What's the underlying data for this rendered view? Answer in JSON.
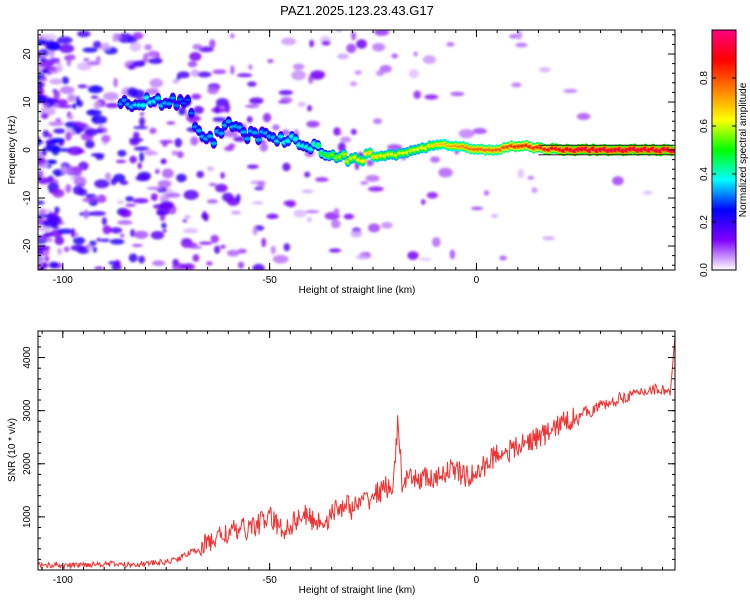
{
  "figure": {
    "title": "PAZ1.2025.123.23.43.G17"
  },
  "chart_data": [
    {
      "type": "heatmap",
      "xlabel": "Height of straight line (km)",
      "ylabel": "Frequency (Hz)",
      "xlim": [
        -106,
        48
      ],
      "ylim": [
        -25,
        25
      ],
      "xticks": [
        -100,
        -50,
        0
      ],
      "yticks": [
        -20,
        -10,
        0,
        10,
        20
      ],
      "colorbar": {
        "label": "Normalized spectral amplitude",
        "range": [
          0,
          1
        ],
        "ticks": [
          0.0,
          0.2,
          0.4,
          0.6,
          0.8
        ],
        "colors": [
          "#ffffff",
          "#8000ff",
          "#0000ff",
          "#00ffff",
          "#00ff00",
          "#ffff00",
          "#ff8000",
          "#ff0000",
          "#ff0080"
        ]
      },
      "ridge": {
        "x": [
          -106,
          -100,
          -90,
          -84,
          -80,
          -75,
          -70,
          -67,
          -64,
          -60,
          -55,
          -50,
          -45,
          -40,
          -35,
          -30,
          -25,
          -20,
          -15,
          -10,
          -5,
          0,
          5,
          10,
          15,
          20,
          25,
          30,
          35,
          40,
          45,
          48
        ],
        "y": [
          1,
          2,
          8,
          10,
          10,
          10,
          10,
          3,
          2,
          5,
          3,
          3,
          2,
          1,
          -1,
          -1.5,
          -1.5,
          -1,
          0,
          1,
          1,
          0,
          0,
          1,
          0.5,
          0,
          0,
          0,
          0,
          0,
          0,
          0
        ],
        "amplitude": [
          0.15,
          0.2,
          0.25,
          0.3,
          0.35,
          0.3,
          0.25,
          0.3,
          0.3,
          0.3,
          0.3,
          0.3,
          0.35,
          0.35,
          0.5,
          0.55,
          0.6,
          0.55,
          0.55,
          0.6,
          0.65,
          0.7,
          0.7,
          0.75,
          0.75,
          0.8,
          0.85,
          0.85,
          0.85,
          0.85,
          0.85,
          0.85
        ]
      }
    },
    {
      "type": "line",
      "xlabel": "Height of straight line (km)",
      "ylabel": "SNR (10 * v/v)",
      "xlim": [
        -106,
        48
      ],
      "ylim": [
        0,
        4500
      ],
      "xticks": [
        -100,
        -50,
        0
      ],
      "yticks": [
        1000,
        2000,
        3000,
        4000
      ],
      "series": [
        {
          "color": "#ee3333",
          "x": [
            -106,
            -100,
            -95,
            -90,
            -85,
            -80,
            -75,
            -72,
            -70,
            -67,
            -65,
            -62,
            -60,
            -57,
            -55,
            -52,
            -50,
            -47,
            -45,
            -42,
            -40,
            -37,
            -35,
            -32,
            -30,
            -27,
            -25,
            -22,
            -20,
            -19,
            -18,
            -15,
            -12,
            -10,
            -8,
            -5,
            -3,
            0,
            3,
            5,
            8,
            10,
            13,
            15,
            18,
            20,
            22,
            25,
            28,
            30,
            33,
            35,
            38,
            40,
            42,
            45,
            47,
            48
          ],
          "y": [
            100,
            80,
            100,
            120,
            100,
            120,
            150,
            220,
            300,
            400,
            500,
            650,
            700,
            750,
            800,
            900,
            1000,
            750,
            850,
            1050,
            950,
            900,
            1050,
            1250,
            1150,
            1300,
            1400,
            1550,
            1600,
            2850,
            1650,
            1700,
            1750,
            1650,
            1850,
            1900,
            1750,
            1800,
            2050,
            2200,
            2250,
            2300,
            2450,
            2500,
            2600,
            2750,
            2800,
            2950,
            3000,
            3100,
            3150,
            3250,
            3300,
            3350,
            3400,
            3400,
            3350,
            4400
          ],
          "noise": 220
        }
      ]
    }
  ]
}
